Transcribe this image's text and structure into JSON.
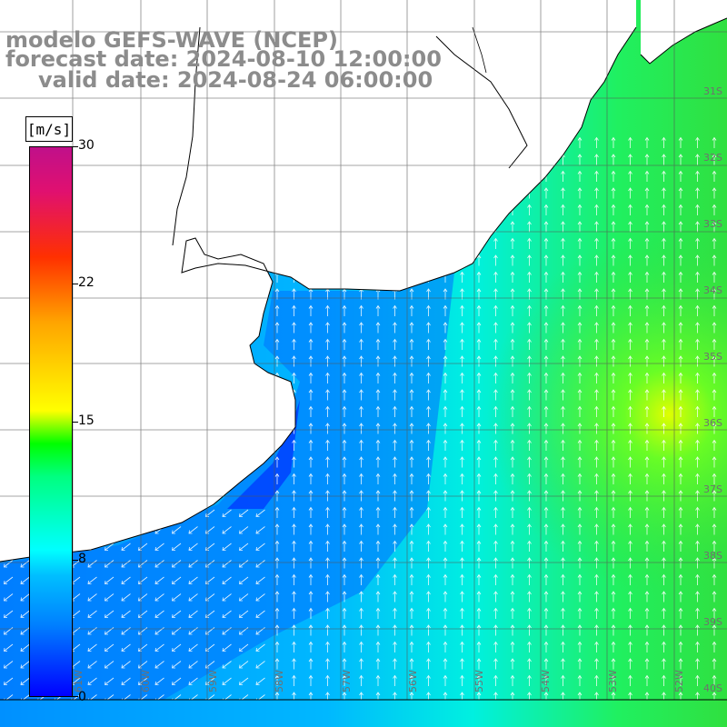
{
  "title": {
    "line1": "modelo GEFS-WAVE (NCEP)",
    "line2": "forecast date: 2024-08-10 12:00:00",
    "line3": "valid date: 2024-08-24 06:00:00"
  },
  "colorbar": {
    "unit": "[m/s]",
    "ticks": [
      "30",
      "22",
      "15",
      "8",
      "0"
    ],
    "min": 0,
    "max": 30,
    "colors": [
      "#0000ff",
      "#0080ff",
      "#00ffff",
      "#00ff00",
      "#ffff00",
      "#ffa500",
      "#ff0000",
      "#c0108a"
    ]
  },
  "latitude_labels": [
    "31S",
    "32S",
    "33S",
    "34S",
    "35S",
    "36S",
    "37S",
    "38S",
    "39S",
    "40S"
  ],
  "longitude_labels": [
    "61W",
    "60W",
    "59W",
    "58W",
    "57W",
    "56W",
    "55W",
    "54W",
    "53W",
    "52W"
  ],
  "colors": {
    "land": "#ffffff",
    "coastline": "#000000",
    "grid": "#555555",
    "arrows": "#ffffff",
    "title": "#8c8c8c"
  }
}
